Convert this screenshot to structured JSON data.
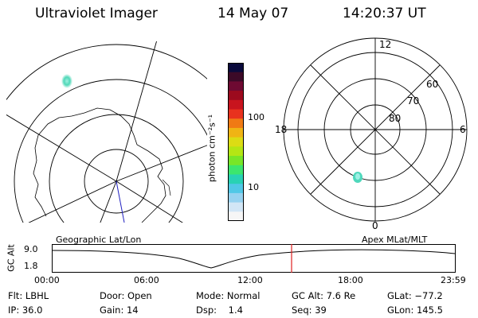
{
  "header": {
    "instrument": "Ultraviolet Imager",
    "date": "14 May 07",
    "time": "14:20:37 UT"
  },
  "polar": {
    "mlt_labels": [
      "12",
      "18",
      "6",
      "0"
    ],
    "lat_labels": [
      "60",
      "70",
      "80"
    ]
  },
  "colorbar": {
    "unit_label": "photon cm⁻²s⁻¹",
    "ticks": [
      "100",
      "10"
    ],
    "colors": [
      "#0a0a3c",
      "#3c0a28",
      "#6e0a32",
      "#9c0a1e",
      "#c8141e",
      "#e8321e",
      "#f07a14",
      "#f0b414",
      "#dcdc14",
      "#b4e614",
      "#78e628",
      "#3ce66e",
      "#28d2b4",
      "#50c8e6",
      "#96d2f0",
      "#d2e6f6",
      "#f6f6f6"
    ]
  },
  "orbit": {
    "y_axis_label": "GC Alt",
    "y_ticks": [
      "9.0",
      "1.8"
    ],
    "left_label": "Geographic Lat/Lon",
    "right_label": "Apex MLat/MLT",
    "x_ticks": [
      "00:00",
      "06:00",
      "12:00",
      "18:00",
      "23:59"
    ]
  },
  "info": {
    "flt": "Flt: LBHL",
    "ip": "IP: 36.0",
    "door": "Door: Open",
    "gain": "Gain: 14",
    "mode": "Mode: Normal",
    "dsp": "Dsp:    1.4",
    "gcalt": "GC Alt: 7.6 Re",
    "seq": "Seq: 39",
    "glat": "GLat: −77.2",
    "glon": "GLon: 145.5"
  }
}
